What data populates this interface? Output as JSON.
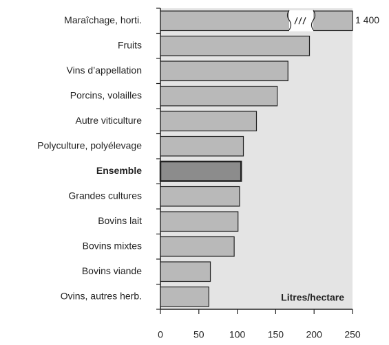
{
  "chart_data": {
    "type": "barh",
    "categories": [
      "Maraîchage, horti.",
      "Fruits",
      "Vins d’appellation",
      "Porcins, volailles",
      "Autre viticulture",
      "Polyculture, polyélevage",
      "Ensemble",
      "Grandes cultures",
      "Bovins lait",
      "Bovins mixtes",
      "Bovins viande",
      "Ovins, autres herb."
    ],
    "values": [
      1400,
      194,
      166,
      152,
      125,
      108,
      105,
      103,
      101,
      96,
      65,
      63
    ],
    "value_labels": [
      "1 400",
      null,
      null,
      null,
      null,
      null,
      null,
      null,
      null,
      null,
      null,
      null
    ],
    "color": "#b9b9b9",
    "highlight": "Ensemble",
    "highlight_color": "#8c8c8c",
    "xlabel": "Litres/hectare",
    "xlim": [
      0,
      250
    ],
    "xticks": [
      0,
      50,
      100,
      150,
      200,
      250
    ]
  }
}
